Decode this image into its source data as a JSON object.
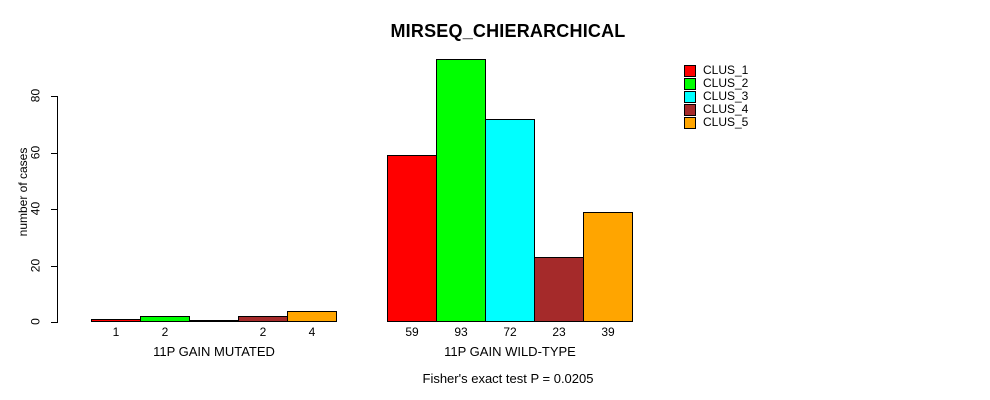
{
  "chart_data": {
    "type": "bar",
    "title": "MIRSEQ_CHIERARCHICAL",
    "ylabel": "number of cases",
    "ylim": [
      0,
      93
    ],
    "yticks": [
      0,
      20,
      40,
      60,
      80
    ],
    "grid": false,
    "legend_position": "top-right-inside",
    "categories": [
      "11P GAIN MUTATED",
      "11P GAIN WILD-TYPE"
    ],
    "series": [
      {
        "name": "CLUS_1",
        "color": "#FF0000",
        "values": [
          1,
          59
        ]
      },
      {
        "name": "CLUS_2",
        "color": "#00FF00",
        "values": [
          2,
          93
        ]
      },
      {
        "name": "CLUS_3",
        "color": "#00FFFF",
        "values": [
          0,
          72
        ]
      },
      {
        "name": "CLUS_4",
        "color": "#A52A2A",
        "values": [
          2,
          23
        ]
      },
      {
        "name": "CLUS_5",
        "color": "#FFA500",
        "values": [
          4,
          39
        ]
      }
    ],
    "bar_labels": [
      [
        "1",
        "2",
        "",
        "2",
        "4"
      ],
      [
        "59",
        "93",
        "72",
        "23",
        "39"
      ]
    ],
    "annotation": "Fisher's exact test P = 0.0205",
    "axis_color": "#000000",
    "background_color": "#FFFFFF"
  }
}
